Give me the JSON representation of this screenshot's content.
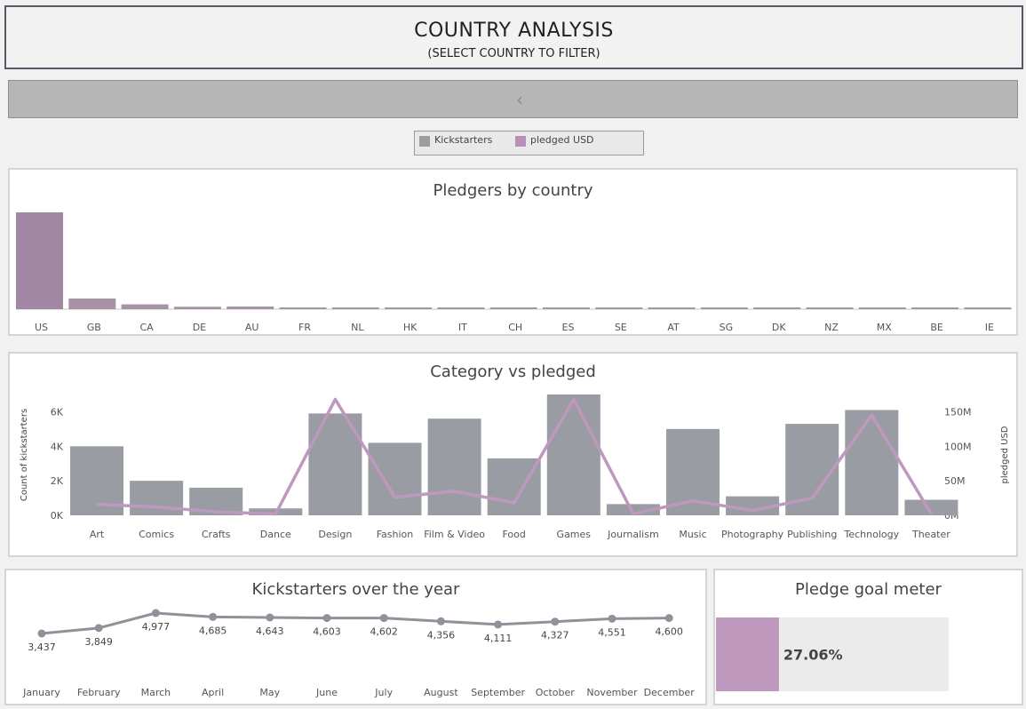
{
  "header": {
    "title": "COUNTRY ANALYSIS",
    "subtitle": "(SELECT COUNTRY TO FILTER)"
  },
  "filter_bar": {
    "chevron": "‹"
  },
  "legend": {
    "items": [
      {
        "label": "Kickstarters",
        "color": "#9a9ca4"
      },
      {
        "label": "pledged USD",
        "color": "#b991b7"
      }
    ]
  },
  "colors": {
    "bar": "#9a9ca4",
    "bar_highlight": "#a187a3",
    "pledged": "#bf98be",
    "meter_bg": "#ebebeb"
  },
  "chart_data": [
    {
      "id": "pledgers-by-country",
      "type": "bar",
      "title": "Pledgers by country",
      "categories": [
        "US",
        "GB",
        "CA",
        "DE",
        "AU",
        "FR",
        "NL",
        "HK",
        "IT",
        "CH",
        "ES",
        "SE",
        "AT",
        "SG",
        "DK",
        "NZ",
        "MX",
        "BE",
        "IE"
      ],
      "values": [
        100,
        11,
        5,
        2.5,
        2.8,
        1.4,
        1.0,
        0.9,
        0.8,
        0.6,
        0.7,
        0.5,
        0.4,
        0.4,
        0.4,
        0.3,
        0.3,
        0.3,
        0.2
      ],
      "ylim": [
        0,
        100
      ],
      "highlighted": "US"
    },
    {
      "id": "category-vs-pledged",
      "type": "bar",
      "title": "Category vs pledged",
      "categories": [
        "Art",
        "Comics",
        "Crafts",
        "Dance",
        "Design",
        "Fashion",
        "Film & Video",
        "Food",
        "Games",
        "Journalism",
        "Music",
        "Photography",
        "Publishing",
        "Technology",
        "Theater"
      ],
      "series": [
        {
          "name": "Kickstarters",
          "axis": "left",
          "values": [
            4000,
            2000,
            1600,
            400,
            5900,
            4200,
            5600,
            3300,
            7000,
            650,
            5000,
            1100,
            5300,
            6100,
            900
          ]
        },
        {
          "name": "pledged USD",
          "axis": "right",
          "values": [
            16000000,
            12000000,
            5000000,
            2000000,
            168000000,
            26000000,
            35000000,
            18000000,
            168000000,
            2000000,
            21000000,
            7000000,
            25000000,
            145000000,
            2000000
          ]
        }
      ],
      "ylabel": "Count of kickstarters",
      "ylabel_right": "pledged USD",
      "yticks": [
        "0K",
        "2K",
        "4K",
        "6K"
      ],
      "yticks_right": [
        "0M",
        "50M",
        "100M",
        "150M"
      ],
      "ylim": [
        0,
        7000
      ],
      "ylim_right": [
        0,
        175000000
      ]
    },
    {
      "id": "kickstarters-over-year",
      "type": "line",
      "title": "Kickstarters over the year",
      "categories": [
        "January",
        "February",
        "March",
        "April",
        "May",
        "June",
        "July",
        "August",
        "September",
        "October",
        "November",
        "December"
      ],
      "values": [
        3437,
        3849,
        4977,
        4685,
        4643,
        4603,
        4602,
        4356,
        4111,
        4327,
        4551,
        4600
      ],
      "labels": [
        "3,437",
        "3,849",
        "4,977",
        "4,685",
        "4,643",
        "4,603",
        "4,602",
        "4,356",
        "4,111",
        "4,327",
        "4,551",
        "4,600"
      ],
      "ylim": [
        3437,
        4977
      ]
    },
    {
      "id": "pledge-goal-meter",
      "type": "bar",
      "title": "Pledge goal meter",
      "value": 0.2706,
      "label": "27.06%"
    }
  ]
}
